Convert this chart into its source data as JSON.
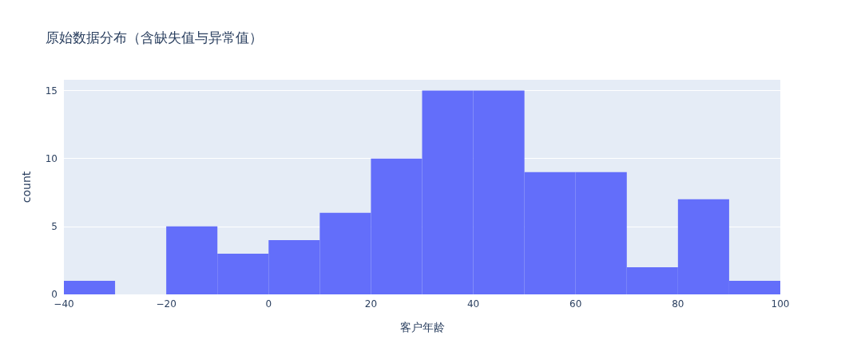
{
  "chart_data": {
    "type": "histogram",
    "title": "原始数据分布（含缺失值与异常值）",
    "xlabel": "客户年龄",
    "ylabel": "count",
    "bins": [
      -40,
      -30,
      -20,
      -10,
      0,
      10,
      20,
      30,
      40,
      50,
      60,
      70,
      80,
      90,
      100
    ],
    "values": [
      1,
      0,
      5,
      3,
      4,
      6,
      10,
      15,
      15,
      9,
      9,
      2,
      7,
      1
    ],
    "color": "#636efa",
    "xlim": [
      -40,
      100
    ],
    "xticks": [
      {
        "value": -40,
        "label": "−40"
      },
      {
        "value": -20,
        "label": "−20"
      },
      0,
      20,
      40,
      60,
      80,
      100
    ],
    "ylim": [
      0,
      15.8
    ],
    "yticks": [
      0,
      5,
      10,
      15
    ],
    "grid": "y"
  }
}
